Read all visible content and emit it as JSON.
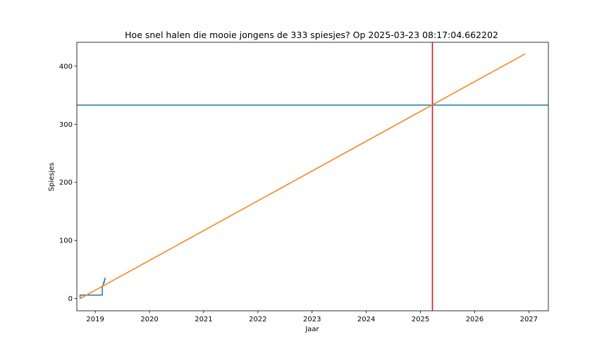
{
  "chart_data": {
    "type": "line",
    "title": "Hoe snel halen die mooie jongens de 333 spiesjes? Op 2025-03-23 08:17:04.662202",
    "xlabel": "Jaar",
    "ylabel": "Spiesjes",
    "x_ticks": [
      2019,
      2020,
      2021,
      2022,
      2023,
      2024,
      2025,
      2026,
      2027
    ],
    "y_ticks": [
      0,
      100,
      200,
      300,
      400
    ],
    "xlim": [
      2018.66,
      2027.36
    ],
    "ylim": [
      -21,
      441
    ],
    "grid": false,
    "series": [
      {
        "kind": "step",
        "color": "#1f77b4",
        "points": [
          [
            2018.72,
            0
          ],
          [
            2018.72,
            6
          ],
          [
            2019.13,
            6
          ],
          [
            2019.13,
            22
          ],
          [
            2019.15,
            22
          ],
          [
            2019.15,
            28
          ],
          [
            2019.17,
            28
          ],
          [
            2019.17,
            33
          ],
          [
            2019.18,
            33
          ],
          [
            2019.18,
            36
          ]
        ]
      },
      {
        "kind": "trend",
        "color": "#ff7f0e",
        "points": [
          [
            2018.72,
            0
          ],
          [
            2026.93,
            421
          ]
        ]
      }
    ],
    "hlines": [
      {
        "y": 333,
        "color": "#1f77b4"
      }
    ],
    "vlines": [
      {
        "x": 2025.22,
        "color": "#ff0000"
      }
    ]
  }
}
